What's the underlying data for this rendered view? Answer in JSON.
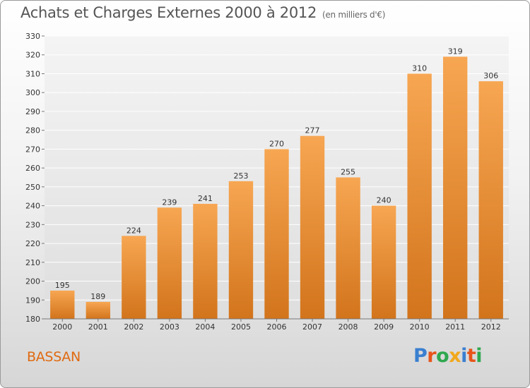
{
  "header": {
    "title": "Achats et Charges Externes 2000 à 2012",
    "subtitle": "(en milliers d'€)"
  },
  "footer": {
    "commune": "BASSAN",
    "logo_letters": [
      {
        "ch": "P",
        "color": "#3a7fd0"
      },
      {
        "ch": "r",
        "color": "#e8541a"
      },
      {
        "ch": "o",
        "color": "#2fa84f"
      },
      {
        "ch": "x",
        "color": "#f2a81d"
      },
      {
        "ch": "i",
        "color": "#3a7fd0"
      },
      {
        "ch": "t",
        "color": "#e8541a"
      },
      {
        "ch": "i",
        "color": "#2fa84f"
      }
    ]
  },
  "colors": {
    "bar_top": "#f7a652",
    "bar_bottom": "#d2741c",
    "grid": "#ffffff",
    "commune_text": "#e06a10"
  },
  "chart_data": {
    "type": "bar",
    "title": "Achats et Charges Externes 2000 à 2012",
    "subtitle": "(en milliers d'€)",
    "categories": [
      "2000",
      "2001",
      "2002",
      "2003",
      "2004",
      "2005",
      "2006",
      "2007",
      "2008",
      "2009",
      "2010",
      "2011",
      "2012"
    ],
    "values": [
      195,
      189,
      224,
      239,
      241,
      253,
      270,
      277,
      255,
      240,
      310,
      319,
      306
    ],
    "ylim": [
      180,
      330
    ],
    "yticks": [
      180,
      190,
      200,
      210,
      220,
      230,
      240,
      250,
      260,
      270,
      280,
      290,
      300,
      310,
      320,
      330
    ],
    "grid": true,
    "legend": "none"
  }
}
